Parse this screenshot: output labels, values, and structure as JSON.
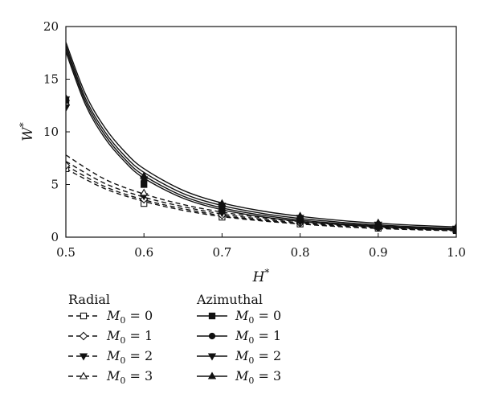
{
  "chart_data": {
    "type": "line",
    "xlabel": "H",
    "xlabel_sup": "*",
    "ylabel": "W",
    "ylabel_sup": "*",
    "xlim": [
      0.5,
      1.0
    ],
    "ylim": [
      0,
      20
    ],
    "xticks": [
      0.5,
      0.6,
      0.7,
      0.8,
      0.9,
      1.0
    ],
    "xtick_labels": [
      "0.5",
      "0.6",
      "0.7",
      "0.8",
      "0.9",
      "1.0"
    ],
    "yticks": [
      0,
      5,
      10,
      15,
      20
    ],
    "ytick_labels": [
      "0",
      "5",
      "10",
      "15",
      "20"
    ],
    "grid": false,
    "legend_position": "bottom",
    "legend_groups": [
      {
        "title": "Radial",
        "entries": [
          {
            "label_prefix": "M",
            "label_sub": "0",
            "label_suffix": " = 0",
            "series_index": 0
          },
          {
            "label_prefix": "M",
            "label_sub": "0",
            "label_suffix": " = 1",
            "series_index": 1
          },
          {
            "label_prefix": "M",
            "label_sub": "0",
            "label_suffix": " = 2",
            "series_index": 2
          },
          {
            "label_prefix": "M",
            "label_sub": "0",
            "label_suffix": " = 3",
            "series_index": 3
          }
        ]
      },
      {
        "title": "Azimuthal",
        "entries": [
          {
            "label_prefix": "M",
            "label_sub": "0",
            "label_suffix": " = 0",
            "series_index": 4
          },
          {
            "label_prefix": "M",
            "label_sub": "0",
            "label_suffix": " = 1",
            "series_index": 5
          },
          {
            "label_prefix": "M",
            "label_sub": "0",
            "label_suffix": " = 2",
            "series_index": 6
          },
          {
            "label_prefix": "M",
            "label_sub": "0",
            "label_suffix": " = 3",
            "series_index": 7
          }
        ]
      }
    ],
    "series": [
      {
        "name": "Radial M0 = 0",
        "style": "dashed",
        "marker": "square-open",
        "curve": {
          "x": [
            0.5,
            0.55,
            0.6,
            0.65,
            0.7,
            0.75,
            0.8,
            0.85,
            0.9,
            0.95,
            1.0
          ],
          "y": [
            6.5,
            4.6,
            3.4,
            2.55,
            1.95,
            1.55,
            1.25,
            1.0,
            0.82,
            0.7,
            0.6
          ]
        },
        "points": {
          "x": [
            0.5,
            0.6,
            0.7,
            0.8,
            0.9,
            1.0
          ],
          "y": [
            6.5,
            3.2,
            1.9,
            1.25,
            0.85,
            0.62
          ]
        }
      },
      {
        "name": "Radial M0 = 1",
        "style": "dashed",
        "marker": "diamond-open",
        "curve": {
          "x": [
            0.5,
            0.55,
            0.6,
            0.65,
            0.7,
            0.75,
            0.8,
            0.85,
            0.9,
            0.95,
            1.0
          ],
          "y": [
            6.8,
            4.8,
            3.55,
            2.7,
            2.05,
            1.62,
            1.3,
            1.05,
            0.86,
            0.72,
            0.62
          ]
        },
        "points": {
          "x": [
            0.5,
            0.6,
            0.7,
            0.8,
            0.9,
            1.0
          ],
          "y": [
            6.8,
            3.6,
            2.1,
            1.35,
            0.9,
            0.65
          ]
        }
      },
      {
        "name": "Radial M0 = 2",
        "style": "dashed",
        "marker": "triangle-down-filled",
        "curve": {
          "x": [
            0.5,
            0.55,
            0.6,
            0.65,
            0.7,
            0.75,
            0.8,
            0.85,
            0.9,
            0.95,
            1.0
          ],
          "y": [
            7.2,
            5.1,
            3.8,
            2.9,
            2.2,
            1.72,
            1.38,
            1.12,
            0.92,
            0.77,
            0.66
          ]
        },
        "points": {
          "x": [
            0.5,
            0.6,
            0.7,
            0.8,
            0.9,
            1.0
          ],
          "y": [
            12.3,
            3.9,
            2.3,
            1.45,
            0.95,
            0.68
          ]
        }
      },
      {
        "name": "Radial M0 = 3",
        "style": "dashed",
        "marker": "triangle-up-open",
        "curve": {
          "x": [
            0.5,
            0.55,
            0.6,
            0.65,
            0.7,
            0.75,
            0.8,
            0.85,
            0.9,
            0.95,
            1.0
          ],
          "y": [
            7.8,
            5.5,
            4.1,
            3.1,
            2.38,
            1.86,
            1.48,
            1.2,
            0.98,
            0.82,
            0.7
          ]
        },
        "points": {
          "x": [
            0.5,
            0.6,
            0.7,
            0.8,
            0.9,
            1.0
          ],
          "y": [
            12.8,
            4.2,
            2.5,
            1.55,
            1.0,
            0.7
          ]
        }
      },
      {
        "name": "Azimuthal M0 = 0",
        "style": "solid",
        "marker": "square-filled",
        "curve": {
          "x": [
            0.5,
            0.525,
            0.55,
            0.575,
            0.6,
            0.65,
            0.7,
            0.75,
            0.8,
            0.85,
            0.9,
            0.95,
            1.0
          ],
          "y": [
            17.6,
            12.6,
            9.4,
            7.2,
            5.6,
            3.7,
            2.6,
            1.95,
            1.5,
            1.2,
            0.98,
            0.82,
            0.7
          ]
        },
        "points": {
          "x": [
            0.5,
            0.6,
            0.7,
            0.8,
            0.9,
            1.0
          ],
          "y": [
            13.0,
            5.0,
            2.6,
            1.6,
            1.05,
            0.7
          ]
        }
      },
      {
        "name": "Azimuthal M0 = 1",
        "style": "solid",
        "marker": "circle-filled",
        "curve": {
          "x": [
            0.5,
            0.525,
            0.55,
            0.575,
            0.6,
            0.65,
            0.7,
            0.75,
            0.8,
            0.85,
            0.9,
            0.95,
            1.0
          ],
          "y": [
            17.9,
            12.9,
            9.7,
            7.45,
            5.85,
            3.9,
            2.78,
            2.1,
            1.62,
            1.3,
            1.06,
            0.89,
            0.76
          ]
        },
        "points": {
          "x": [
            0.5,
            0.6,
            0.7,
            0.8,
            0.9,
            1.0
          ],
          "y": [
            13.0,
            5.3,
            2.8,
            1.7,
            1.1,
            0.75
          ]
        }
      },
      {
        "name": "Azimuthal M0 = 2",
        "style": "solid",
        "marker": "triangle-down-filled",
        "curve": {
          "x": [
            0.5,
            0.525,
            0.55,
            0.575,
            0.6,
            0.65,
            0.7,
            0.75,
            0.8,
            0.85,
            0.9,
            0.95,
            1.0
          ],
          "y": [
            18.2,
            13.2,
            10.0,
            7.75,
            6.15,
            4.15,
            3.0,
            2.28,
            1.78,
            1.43,
            1.17,
            0.98,
            0.84
          ]
        },
        "points": {
          "x": [
            0.5,
            0.6,
            0.7,
            0.8,
            0.9,
            1.0
          ],
          "y": [
            13.1,
            5.5,
            3.0,
            1.85,
            1.2,
            0.82
          ]
        }
      },
      {
        "name": "Azimuthal M0 = 3",
        "style": "solid",
        "marker": "triangle-up-filled",
        "curve": {
          "x": [
            0.5,
            0.525,
            0.55,
            0.575,
            0.6,
            0.65,
            0.7,
            0.75,
            0.8,
            0.85,
            0.9,
            0.95,
            1.0
          ],
          "y": [
            18.5,
            13.6,
            10.4,
            8.15,
            6.5,
            4.45,
            3.25,
            2.5,
            1.98,
            1.6,
            1.32,
            1.12,
            0.98
          ]
        },
        "points": {
          "x": [
            0.5,
            0.6,
            0.7,
            0.8,
            0.9,
            1.0
          ],
          "y": [
            13.2,
            5.8,
            3.2,
            2.0,
            1.35,
            0.95
          ]
        }
      }
    ]
  }
}
